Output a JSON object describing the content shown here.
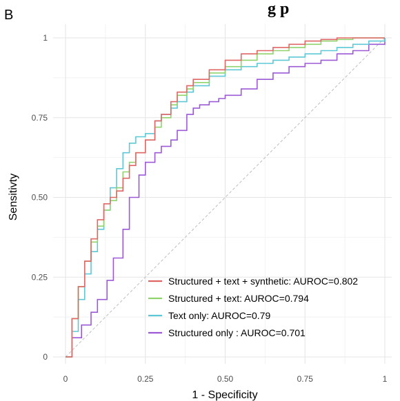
{
  "panel_label": "B",
  "title_fragment": "g   p",
  "chart_data": {
    "type": "line",
    "title": "",
    "xlabel": "1 - Specificity",
    "ylabel": "Sensitivty",
    "xlim": [
      0,
      1
    ],
    "ylim": [
      0,
      1
    ],
    "x_ticks": [
      0,
      0.25,
      0.5,
      0.75,
      1
    ],
    "x_tick_labels": [
      "0",
      "0.25",
      "0.50",
      "0.75",
      "1"
    ],
    "y_ticks": [
      0,
      0.25,
      0.5,
      0.75,
      1
    ],
    "y_tick_labels": [
      "0",
      "0.25",
      "0.50",
      "0.75",
      "1"
    ],
    "grid": true,
    "legend_position": "bottom-right",
    "reference_line": {
      "x": [
        0,
        1
      ],
      "y": [
        0,
        1
      ],
      "style": "dashed",
      "color": "#bdbdbd"
    },
    "series": [
      {
        "name": "Structured only : AUROC=0.701",
        "color": "#9b59d6",
        "x": [
          0,
          0.02,
          0.05,
          0.08,
          0.1,
          0.13,
          0.15,
          0.18,
          0.2,
          0.23,
          0.25,
          0.28,
          0.3,
          0.33,
          0.35,
          0.38,
          0.4,
          0.42,
          0.45,
          0.48,
          0.5,
          0.55,
          0.6,
          0.65,
          0.7,
          0.75,
          0.8,
          0.85,
          0.9,
          0.95,
          1.0
        ],
        "y": [
          0,
          0.06,
          0.1,
          0.14,
          0.18,
          0.24,
          0.31,
          0.4,
          0.5,
          0.57,
          0.61,
          0.64,
          0.66,
          0.68,
          0.71,
          0.76,
          0.78,
          0.79,
          0.8,
          0.81,
          0.82,
          0.84,
          0.87,
          0.89,
          0.91,
          0.92,
          0.93,
          0.95,
          0.96,
          0.98,
          1.0
        ]
      },
      {
        "name": "Text only: AUROC=0.79",
        "color": "#5cc8d6",
        "x": [
          0,
          0.02,
          0.04,
          0.06,
          0.08,
          0.1,
          0.12,
          0.14,
          0.16,
          0.18,
          0.2,
          0.22,
          0.25,
          0.28,
          0.3,
          0.33,
          0.35,
          0.38,
          0.4,
          0.45,
          0.5,
          0.55,
          0.6,
          0.65,
          0.7,
          0.75,
          0.8,
          0.85,
          0.9,
          0.95,
          1.0
        ],
        "y": [
          0,
          0.08,
          0.18,
          0.26,
          0.33,
          0.4,
          0.46,
          0.53,
          0.59,
          0.64,
          0.67,
          0.69,
          0.7,
          0.74,
          0.76,
          0.78,
          0.8,
          0.83,
          0.85,
          0.88,
          0.9,
          0.91,
          0.92,
          0.93,
          0.94,
          0.95,
          0.96,
          0.97,
          0.98,
          0.99,
          1.0
        ]
      },
      {
        "name": "Structured + text: AUROC=0.794",
        "color": "#8fd46b",
        "x": [
          0,
          0.02,
          0.04,
          0.06,
          0.08,
          0.1,
          0.12,
          0.14,
          0.16,
          0.18,
          0.2,
          0.22,
          0.25,
          0.28,
          0.3,
          0.33,
          0.35,
          0.38,
          0.4,
          0.45,
          0.5,
          0.55,
          0.6,
          0.65,
          0.7,
          0.75,
          0.8,
          0.85,
          0.9,
          0.95,
          1.0
        ],
        "y": [
          0,
          0.12,
          0.22,
          0.3,
          0.36,
          0.41,
          0.46,
          0.49,
          0.53,
          0.58,
          0.61,
          0.64,
          0.68,
          0.72,
          0.75,
          0.79,
          0.82,
          0.84,
          0.86,
          0.89,
          0.91,
          0.93,
          0.95,
          0.96,
          0.97,
          0.98,
          0.99,
          0.995,
          1.0,
          1.0,
          1.0
        ]
      },
      {
        "name": "Structured + text + synthetic: AUROC=0.802",
        "color": "#e06666",
        "x": [
          0,
          0.02,
          0.04,
          0.06,
          0.08,
          0.1,
          0.12,
          0.14,
          0.16,
          0.18,
          0.2,
          0.22,
          0.25,
          0.28,
          0.3,
          0.33,
          0.35,
          0.38,
          0.4,
          0.45,
          0.5,
          0.55,
          0.6,
          0.65,
          0.7,
          0.75,
          0.8,
          0.85,
          0.9,
          0.95,
          1.0
        ],
        "y": [
          0,
          0.12,
          0.22,
          0.3,
          0.37,
          0.43,
          0.48,
          0.5,
          0.52,
          0.56,
          0.6,
          0.64,
          0.68,
          0.74,
          0.76,
          0.8,
          0.83,
          0.85,
          0.87,
          0.9,
          0.93,
          0.95,
          0.96,
          0.97,
          0.98,
          0.99,
          0.995,
          1.0,
          1.0,
          1.0,
          1.0
        ]
      }
    ],
    "legend_order": [
      3,
      2,
      1,
      0
    ]
  }
}
